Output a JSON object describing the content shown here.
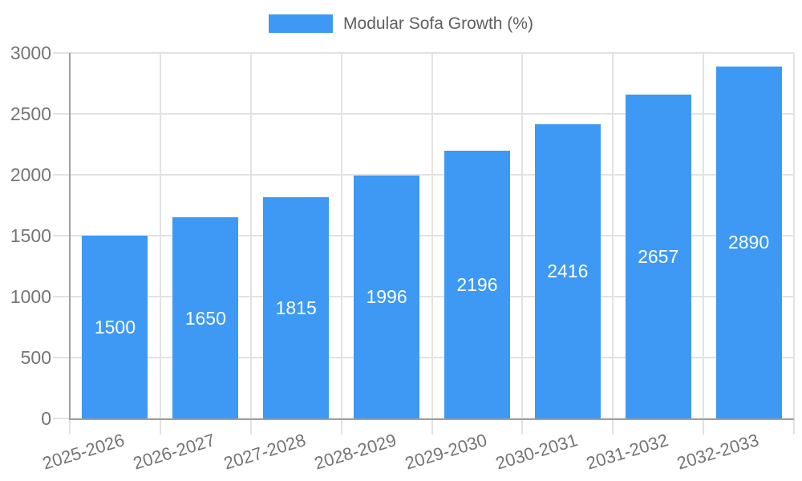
{
  "legend": {
    "label": "Modular Sofa Growth (%)"
  },
  "chart_data": {
    "type": "bar",
    "title": "Modular Sofa Growth (%)",
    "categories": [
      "2025-2026",
      "2026-2027",
      "2027-2028",
      "2028-2029",
      "2029-2030",
      "2030-2031",
      "2031-2032",
      "2032-2033"
    ],
    "values": [
      1500,
      1650,
      1815,
      1996,
      2196,
      2416,
      2657,
      2890
    ],
    "xlabel": "",
    "ylabel": "",
    "ylim": [
      0,
      3000
    ],
    "yticks": [
      0,
      500,
      1000,
      1500,
      2000,
      2500,
      3000
    ],
    "grid": true,
    "legend_position": "top-center",
    "bar_value_labels_inside": true,
    "colors": {
      "bar": "#3d99f4",
      "grid": "#e2e2e2",
      "axis": "#a0a0a0",
      "tick_text": "#757575",
      "legend_text": "#5f5f5f",
      "bar_label_text": "#ffffff"
    }
  }
}
